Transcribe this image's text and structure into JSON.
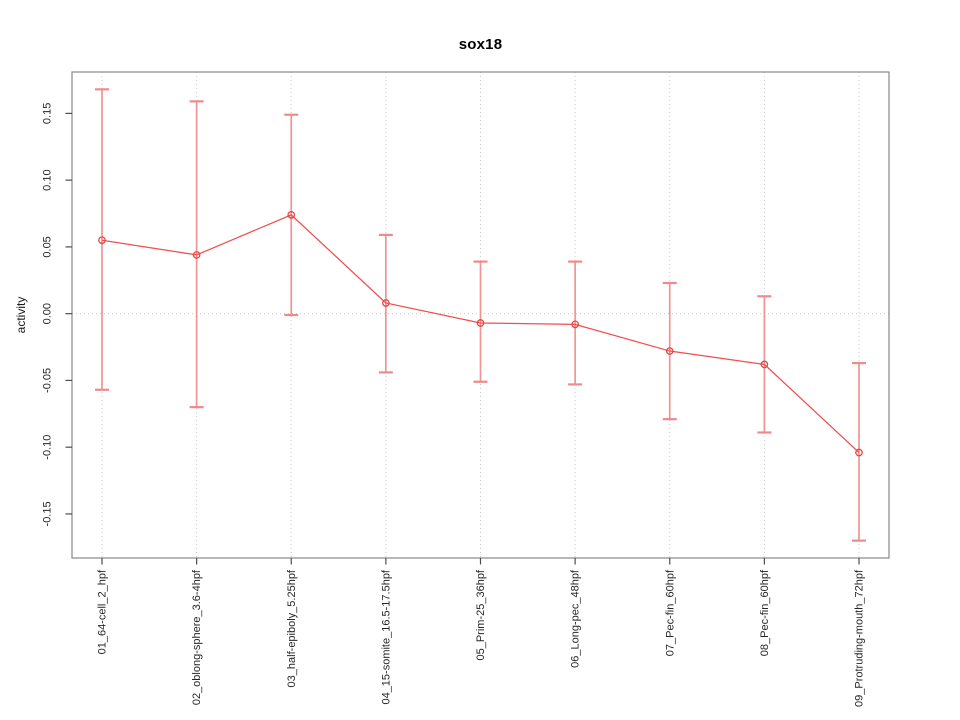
{
  "title": "sox18",
  "y_axis_label": "activity",
  "chart_data": {
    "type": "line",
    "title": "sox18",
    "xlabel": "",
    "ylabel": "activity",
    "categories": [
      "01_64-cell_2_hpf",
      "02_oblong-sphere_3.6-4hpf",
      "03_half-epiboly_5.25hpf",
      "04_15-somite_16.5-17.5hpf",
      "05_Prim-25_36hpf",
      "06_Long-pec_48hpf",
      "07_Pec-fin_60hpf",
      "08_Pec-fin_60hpf",
      "09_Protruding-mouth_72hpf"
    ],
    "series": [
      {
        "name": "sox18 activity",
        "values": [
          0.055,
          0.044,
          0.074,
          0.008,
          -0.007,
          -0.008,
          -0.028,
          -0.038,
          -0.104
        ],
        "err_high": [
          0.168,
          0.159,
          0.149,
          0.059,
          0.039,
          0.039,
          0.023,
          0.013,
          -0.037
        ],
        "err_low": [
          -0.057,
          -0.07,
          -0.001,
          -0.044,
          -0.051,
          -0.053,
          -0.079,
          -0.089,
          -0.17
        ]
      }
    ],
    "y_ticks": [
      0.15,
      0.1,
      0.05,
      0.0,
      -0.05,
      -0.1,
      -0.15
    ],
    "y_tick_labels": [
      "0.15",
      "0.10",
      "0.05",
      "0.00",
      "-0.05",
      "-0.10",
      "-0.15"
    ],
    "ylim": [
      -0.183,
      0.181
    ],
    "marker": "open-circle",
    "error_bars": true,
    "grid": {
      "vertical": "dotted-per-category",
      "horizontal": "zero-line-only"
    },
    "legend_position": "none",
    "colors": {
      "series_line": "#ef4e4e",
      "marker": "#e84545",
      "error_bar": "#f08a8a",
      "grid_line": "#c9c9c9",
      "zero_line": "#c9c9c9",
      "box_border": "#898989",
      "tick": "#4d4d4d",
      "text": "#262626",
      "background": "#ffffff"
    }
  }
}
